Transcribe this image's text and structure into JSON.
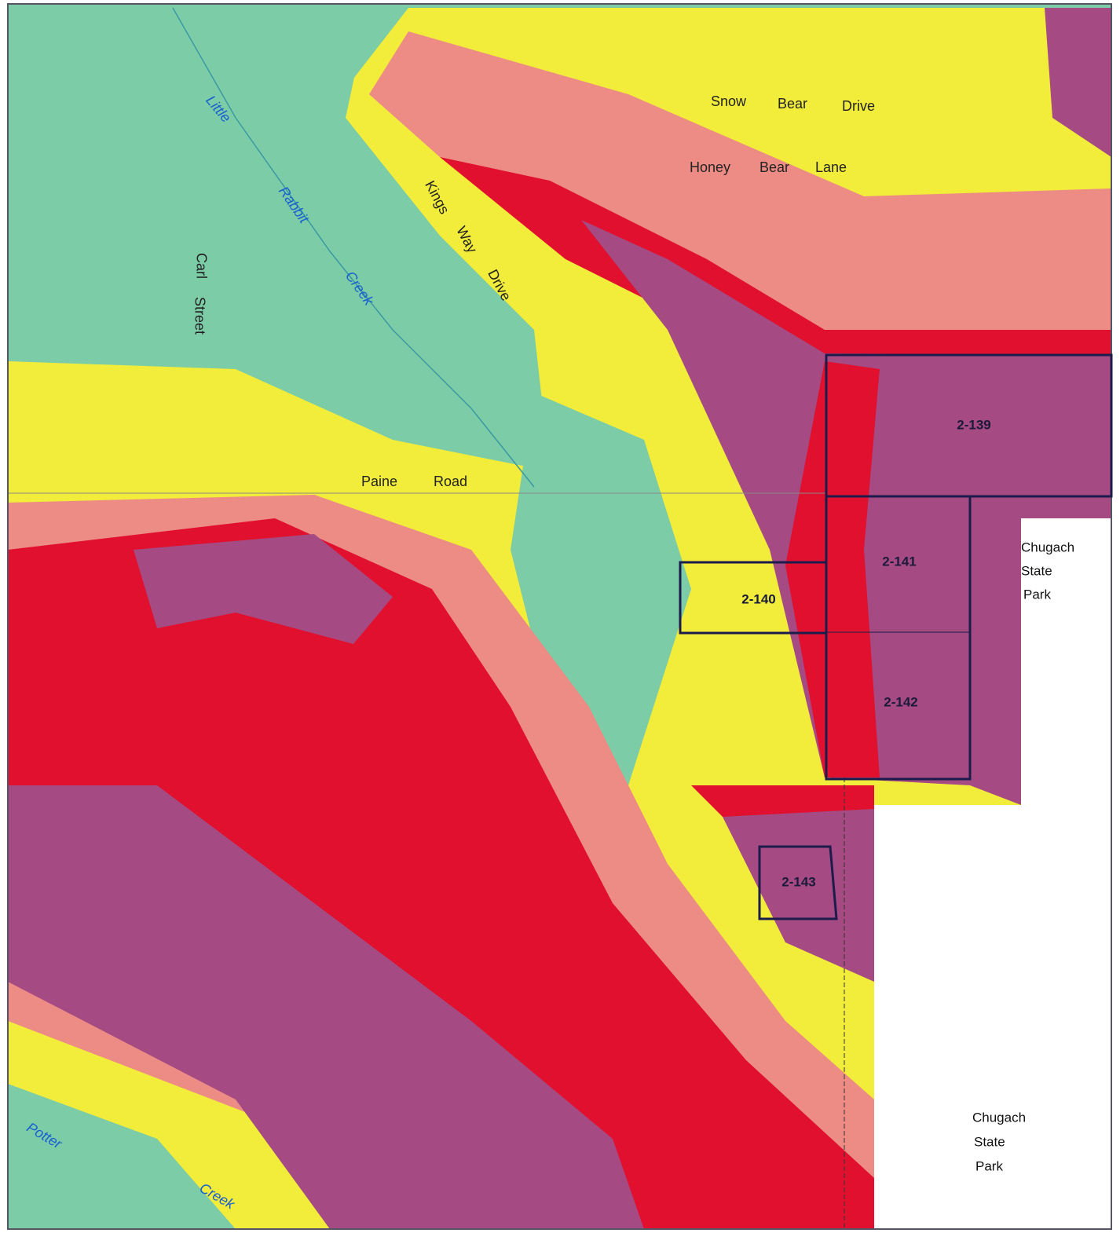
{
  "roads": [
    {
      "words": [
        "Snow",
        "Bear",
        "Drive"
      ]
    },
    {
      "words": [
        "Honey",
        "Bear",
        "Lane"
      ]
    },
    {
      "words": [
        "Kings",
        "Way",
        "Drive"
      ]
    },
    {
      "words": [
        "Carl",
        "Street"
      ]
    },
    {
      "words": [
        "Paine",
        "Road"
      ]
    }
  ],
  "creeks": [
    {
      "words": [
        "Little",
        "Rabbit",
        "Creek"
      ]
    },
    {
      "words": [
        "Potter",
        "Creek"
      ]
    }
  ],
  "parcels": [
    "2-139",
    "2-140",
    "2-141",
    "2-142",
    "2-143"
  ],
  "parks": [
    {
      "lines": [
        "Chugach",
        "State",
        "Park"
      ]
    },
    {
      "lines": [
        "Chugach",
        "State",
        "Park"
      ]
    }
  ]
}
